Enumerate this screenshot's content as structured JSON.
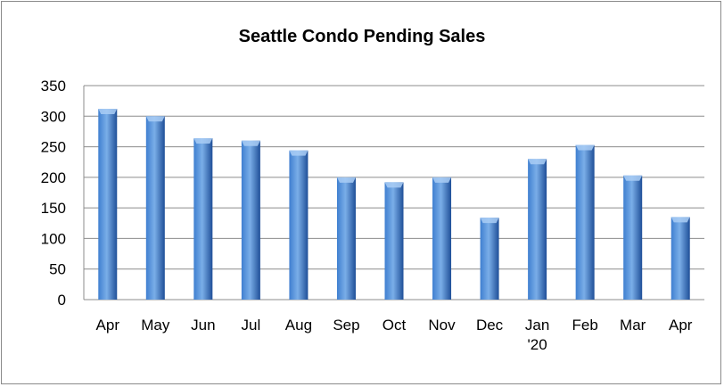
{
  "chart_data": {
    "type": "bar",
    "title": "Seattle Condo Pending Sales",
    "categories": [
      "Apr",
      "May",
      "Jun",
      "Jul",
      "Aug",
      "Sep",
      "Oct",
      "Nov",
      "Dec",
      "Jan\n'20",
      "Feb",
      "Mar",
      "Apr"
    ],
    "values": [
      312,
      300,
      264,
      260,
      244,
      200,
      192,
      200,
      134,
      230,
      253,
      203,
      135
    ],
    "ylim": [
      0,
      350
    ],
    "yticks": [
      0,
      50,
      100,
      150,
      200,
      250,
      300,
      350
    ],
    "grid": true,
    "legend": "none",
    "xlabel": "",
    "ylabel": "",
    "colors": {
      "bar_light": "#7aaee8",
      "bar_mid": "#3f7fd0",
      "bar_dark": "#1f4f98",
      "bar_top": "#a9cdf5",
      "grid": "#8c8c8c",
      "axis": "#8c8c8c"
    }
  }
}
